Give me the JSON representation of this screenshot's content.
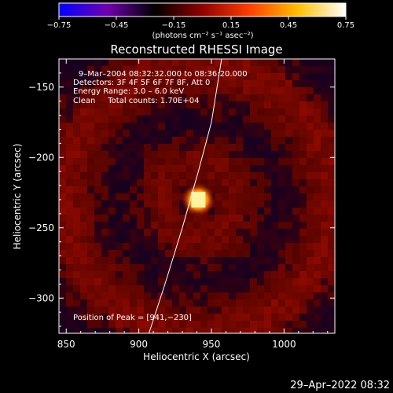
{
  "chart_data": {
    "type": "heatmap",
    "title": "Reconstructed RHESSI Image",
    "xlabel": "Heliocentric X (arcsec)",
    "ylabel": "Heliocentric Y (arcsec)",
    "xlim": [
      845,
      1035
    ],
    "ylim": [
      -325,
      -130
    ],
    "x_ticks": [
      850,
      900,
      950,
      1000
    ],
    "y_ticks": [
      -150,
      -200,
      -250,
      -300
    ],
    "x_tick_labels": [
      "850",
      "900",
      "950",
      "1000"
    ],
    "y_tick_labels": [
      "−150",
      "−200",
      "−250",
      "−300"
    ],
    "colorbar": {
      "min": -0.75,
      "max": 0.75,
      "ticks": [
        -0.75,
        -0.45,
        -0.15,
        0.15,
        0.45,
        0.75
      ],
      "tick_labels": [
        "−0.75",
        "−0.45",
        "−0.15",
        "0.15",
        "0.45",
        "0.75"
      ],
      "colors": [
        "#0000ff",
        "#7000b0",
        "#000000",
        "#900000",
        "#ff4000",
        "#ffc000",
        "#ffffff"
      ]
    },
    "unit_label": "(photons cm⁻² s⁻¹ asec⁻²)",
    "annotations": {
      "time": "9–Mar–2004 08:32:32.000 to 08:36:20.000",
      "detectors": "Detectors: 3F 4F 5F 6F 7F 8F, Att 0",
      "energy": "Energy Range: 3.0 – 6.0 keV",
      "clean": "Clean     Total counts: 1.70E+04",
      "peak": "Position of Peak = [941,−230]"
    },
    "peak_position": [
      941,
      -230
    ],
    "limb_curve": [
      [
        907,
        -325
      ],
      [
        918,
        -290
      ],
      [
        930,
        -250
      ],
      [
        941,
        -210
      ],
      [
        950,
        -175
      ],
      [
        957,
        -130
      ]
    ],
    "footer": "29–Apr–2022 08:32"
  }
}
